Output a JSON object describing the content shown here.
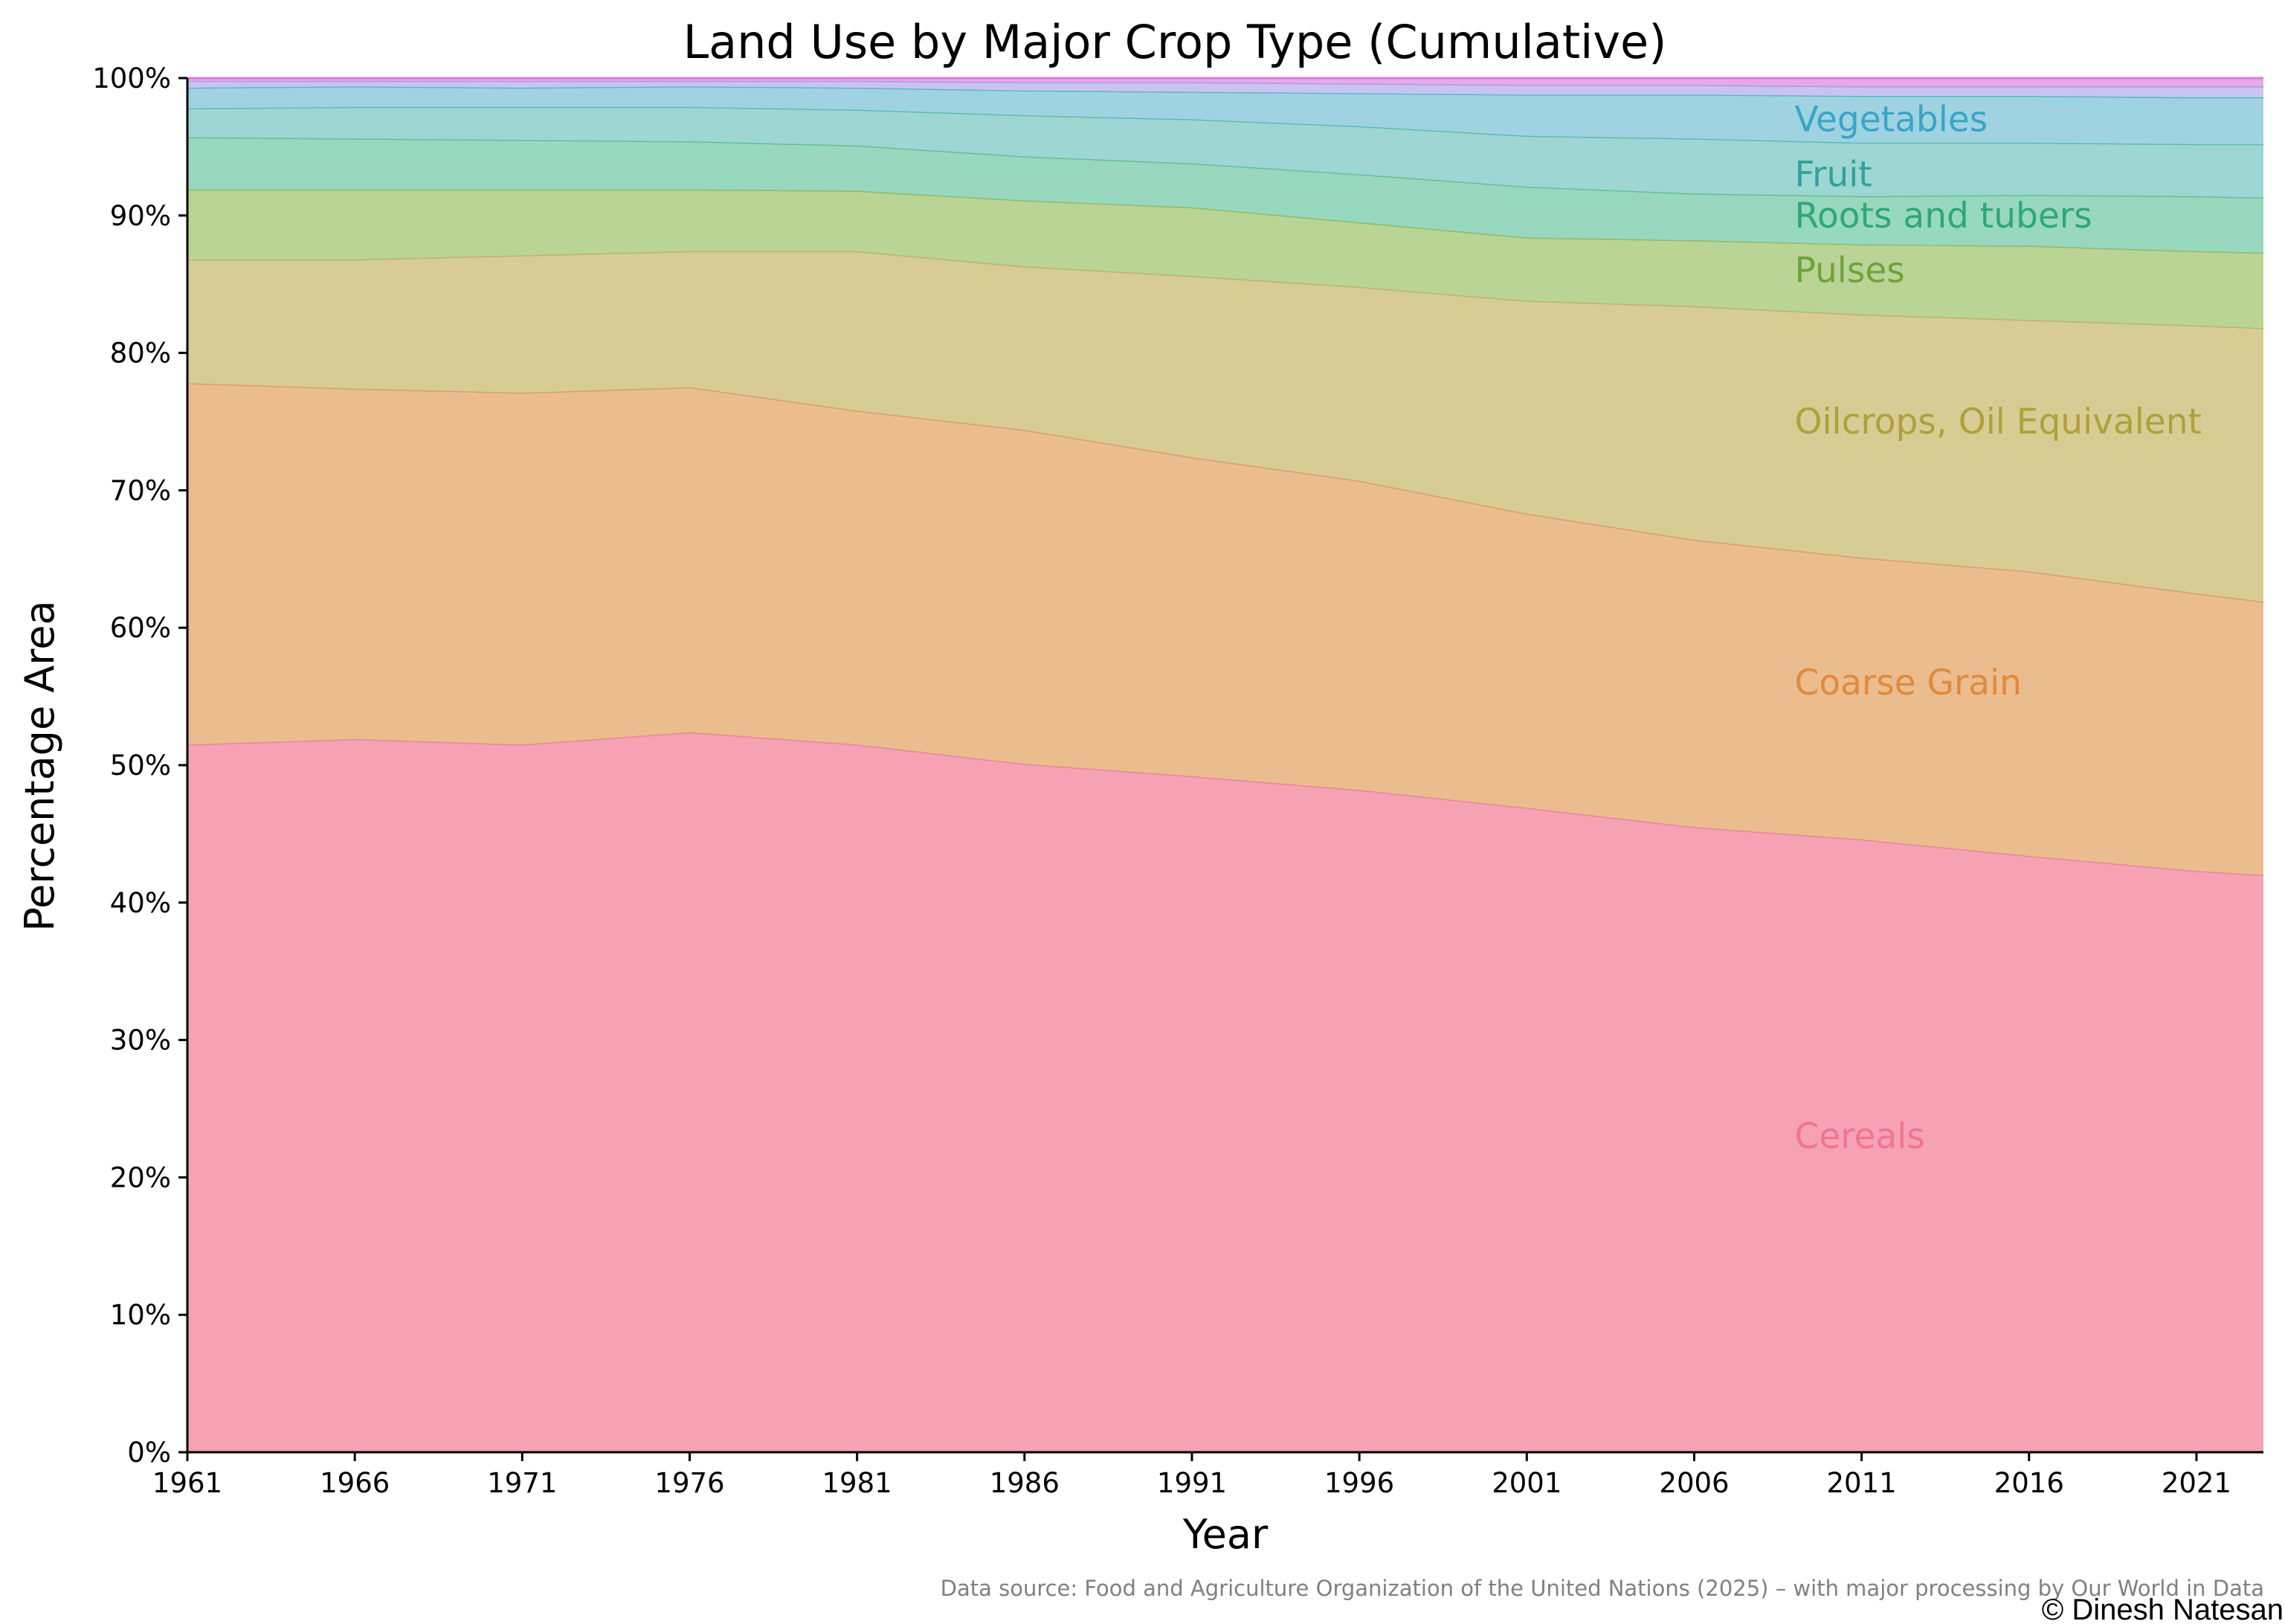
{
  "chart_data": {
    "type": "area",
    "stacked": true,
    "title": "Land Use by Major Crop Type (Cumulative)",
    "xlabel": "Year",
    "ylabel": "Percentage Area",
    "xlim": [
      1961,
      2023
    ],
    "ylim": [
      0,
      100
    ],
    "x_ticks": [
      1961,
      1966,
      1971,
      1976,
      1981,
      1986,
      1991,
      1996,
      2001,
      2006,
      2011,
      2016,
      2021
    ],
    "y_ticks": [
      0,
      10,
      20,
      30,
      40,
      50,
      60,
      70,
      80,
      90,
      100
    ],
    "y_tick_labels": [
      "0%",
      "10%",
      "20%",
      "30%",
      "40%",
      "50%",
      "60%",
      "70%",
      "80%",
      "90%",
      "100%"
    ],
    "grid": false,
    "legend": "inline labels at right",
    "x": [
      1961,
      1966,
      1971,
      1976,
      1981,
      1986,
      1991,
      1996,
      2001,
      2006,
      2011,
      2016,
      2021,
      2023
    ],
    "series": [
      {
        "name": "Cereals",
        "color": "#f7a1b5",
        "edge": "#e8889c",
        "label_color": "#f07592",
        "cumulative": [
          51.5,
          51.9,
          51.5,
          52.4,
          51.5,
          50.1,
          49.2,
          48.2,
          46.9,
          45.5,
          44.6,
          43.4,
          42.3,
          42.0
        ]
      },
      {
        "name": "Coarse Grain",
        "color": "#ebbd8e",
        "edge": "#d9a066",
        "label_color": "#e08a3c",
        "cumulative": [
          77.8,
          77.4,
          77.1,
          77.5,
          75.8,
          74.4,
          72.4,
          70.7,
          68.3,
          66.4,
          65.1,
          64.1,
          62.5,
          61.9
        ]
      },
      {
        "name": "Oilcrops, Oil Equivalent",
        "color": "#d7cc93",
        "edge": "#c0b36a",
        "label_color": "#b1a03a",
        "cumulative": [
          86.8,
          86.8,
          87.1,
          87.4,
          87.4,
          86.3,
          85.6,
          84.8,
          83.8,
          83.4,
          82.8,
          82.4,
          82.0,
          81.8
        ]
      },
      {
        "name": "Pulses",
        "color": "#b9d495",
        "edge": "#92bb6a",
        "label_color": "#6fa33a",
        "cumulative": [
          91.9,
          91.9,
          91.9,
          91.9,
          91.8,
          91.1,
          90.6,
          89.5,
          88.4,
          88.2,
          87.9,
          87.8,
          87.4,
          87.3
        ]
      },
      {
        "name": "Roots and tubers",
        "color": "#98d8bf",
        "edge": "#62c09c",
        "label_color": "#2ea877",
        "cumulative": [
          95.7,
          95.6,
          95.5,
          95.4,
          95.1,
          94.3,
          93.8,
          93.0,
          92.1,
          91.6,
          91.4,
          91.5,
          91.4,
          91.3
        ]
      },
      {
        "name": "Fruit",
        "color": "#9dd6d3",
        "edge": "#5fbcb6",
        "label_color": "#30a29b",
        "cumulative": [
          97.8,
          97.9,
          97.9,
          97.9,
          97.7,
          97.3,
          97.0,
          96.5,
          95.8,
          95.6,
          95.3,
          95.3,
          95.2,
          95.2
        ]
      },
      {
        "name": "Vegetables",
        "color": "#9fd3e2",
        "edge": "#5eb6cf",
        "label_color": "#3aa5c7",
        "cumulative": [
          99.3,
          99.4,
          99.3,
          99.4,
          99.3,
          99.1,
          99.0,
          98.9,
          98.8,
          98.8,
          98.7,
          98.7,
          98.6,
          98.6
        ]
      },
      {
        "name": "",
        "color": "#c9c4ee",
        "edge": "#a79fe0",
        "cumulative": [
          99.8,
          99.8,
          99.8,
          99.8,
          99.8,
          99.7,
          99.7,
          99.6,
          99.5,
          99.5,
          99.4,
          99.4,
          99.4,
          99.4
        ]
      },
      {
        "name": "",
        "color": "#e9a8e8",
        "edge": "#d97fd7",
        "cumulative": [
          100,
          100,
          100,
          100,
          100,
          100,
          100,
          100,
          100,
          100,
          100,
          100,
          100,
          100
        ]
      }
    ],
    "label_anchor_x": 2009,
    "label_y": [
      23,
      56,
      75,
      86,
      90,
      93,
      97
    ],
    "source_note": "Data source: Food and Agriculture Organization of the United Nations (2025) – with major processing by Our World in Data",
    "credit": "© Dinesh Natesan"
  }
}
